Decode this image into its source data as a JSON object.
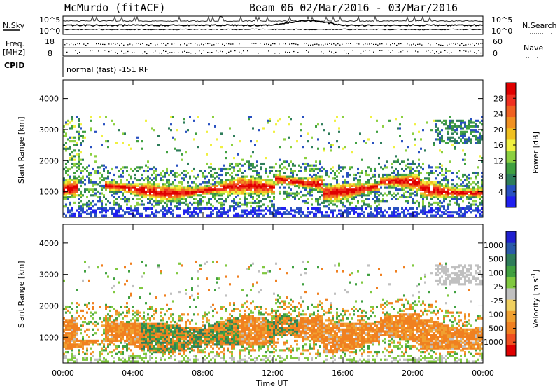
{
  "header": {
    "station": "McMurdo (fitACF)",
    "beam_dates": "Beam 06  02/Mar/2016 - 03/Mar/2016"
  },
  "top_panels": {
    "nsky_label": "N.Sky",
    "nsearch_label": "N.Search",
    "nsearch_ticks": [
      "10^5",
      "10^0"
    ],
    "freq_label": "Freq.",
    "freq_unit": "[MHz]",
    "freq_ticks": [
      "18",
      "8"
    ],
    "nave_label": "Nave",
    "nave_ticks": [
      "60",
      "0"
    ],
    "cpid_label": "CPID",
    "cpid_text": "normal (fast) -151 RF"
  },
  "chart_data": [
    {
      "type": "heatmap",
      "name": "Power",
      "ylabel": "Slant Range [km]",
      "xlabel": "Time UT",
      "x_ticks": [
        "00:00",
        "04:00",
        "08:00",
        "12:00",
        "16:00",
        "20:00",
        "00:00"
      ],
      "y_ticks": [
        1000,
        2000,
        3000,
        4000
      ],
      "ylim": [
        180,
        4600
      ],
      "colorbar": {
        "label": "Power [dB]",
        "ticks": [
          "4",
          "8",
          "12",
          "16",
          "20",
          "24",
          "28"
        ],
        "colors": [
          "#2020f0",
          "#2850c0",
          "#2e7d5a",
          "#40a040",
          "#8cd040",
          "#f0f040",
          "#f0c020",
          "#f09020",
          "#f06020",
          "#f03020",
          "#e00000"
        ]
      }
    },
    {
      "type": "heatmap",
      "name": "Velocity",
      "ylabel": "Slant Range [km]",
      "xlabel": "Time UT",
      "x_ticks": [
        "00:00",
        "04:00",
        "08:00",
        "12:00",
        "16:00",
        "20:00",
        "00:00"
      ],
      "y_ticks": [
        1000,
        2000,
        3000,
        4000
      ],
      "ylim": [
        180,
        4600
      ],
      "colorbar": {
        "label": "Velocity [m s^-1]",
        "ticks": [
          "1000",
          "500",
          "100",
          "25",
          "-25",
          "-100",
          "-500",
          "-1000"
        ],
        "colors": [
          "#2020d0",
          "#2a5aa8",
          "#2e7d5a",
          "#40a040",
          "#80c840",
          "#c0c0c0",
          "#f0d060",
          "#f0a030",
          "#f08020",
          "#f05020",
          "#e00000"
        ]
      }
    }
  ],
  "x_axis_title": "Time UT",
  "colors": {
    "power_main": "#f06a20",
    "velocity_main": "#f08a20",
    "ground_scatter": "#b0b0b0"
  }
}
